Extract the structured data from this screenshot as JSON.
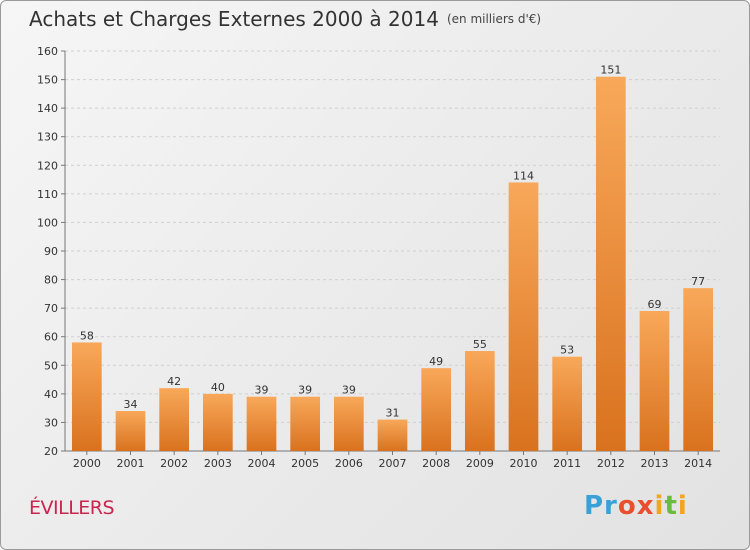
{
  "header": {
    "title": "Achats et Charges Externes 2000 à 2014",
    "unit": "(en milliers d'€)"
  },
  "footer": {
    "city": "ÉVILLERS",
    "logo_parts": [
      "Pr",
      "o",
      "x",
      "i",
      "t",
      "i"
    ]
  },
  "colors": {
    "bar_light": "#f8a85a",
    "bar_dark": "#d9721e",
    "city": "#c8264e",
    "grid": "#cfcfcf"
  },
  "chart_data": {
    "type": "bar",
    "categories": [
      "2000",
      "2001",
      "2002",
      "2003",
      "2004",
      "2005",
      "2006",
      "2007",
      "2008",
      "2009",
      "2010",
      "2011",
      "2012",
      "2013",
      "2014"
    ],
    "values": [
      58,
      34,
      42,
      40,
      39,
      39,
      39,
      31,
      49,
      55,
      114,
      53,
      151,
      69,
      77
    ],
    "title": "Achats et Charges Externes 2000 à 2014",
    "ylim": [
      20,
      160
    ],
    "yticks": [
      20,
      30,
      40,
      50,
      60,
      70,
      80,
      90,
      100,
      110,
      120,
      130,
      140,
      150,
      160
    ],
    "grid": true,
    "data_labels": true
  }
}
